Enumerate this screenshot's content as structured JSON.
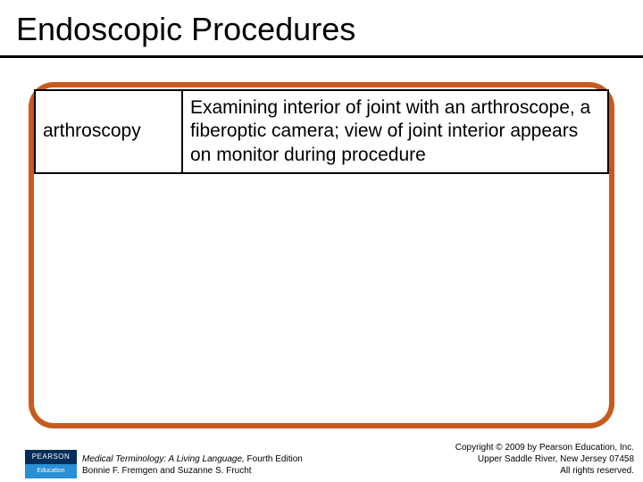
{
  "slide": {
    "title": "Endoscopic Procedures",
    "panel": {
      "border_color": "#c85a1e",
      "background_color": "#ffffff",
      "border_radius": 28
    },
    "table": {
      "rows": [
        {
          "term": "arthroscopy",
          "definition": "Examining interior of joint with an arthroscope, a fiberoptic camera; view of joint interior appears on monitor during procedure"
        }
      ],
      "border_color": "#000000",
      "font_size": 21
    }
  },
  "footer": {
    "logo": {
      "top_text": "PEARSON",
      "bottom_text": "Education",
      "top_bg": "#002d5a",
      "bottom_bg": "#2a8fd4"
    },
    "book": {
      "title": "Medical Terminology: A Living Language,",
      "edition": " Fourth Edition",
      "authors": "Bonnie F. Fremgen and Suzanne S. Frucht"
    },
    "copyright": {
      "line1": "Copyright © 2009 by Pearson Education, Inc.",
      "line2": "Upper Saddle River, New Jersey 07458",
      "line3": "All rights reserved."
    }
  }
}
